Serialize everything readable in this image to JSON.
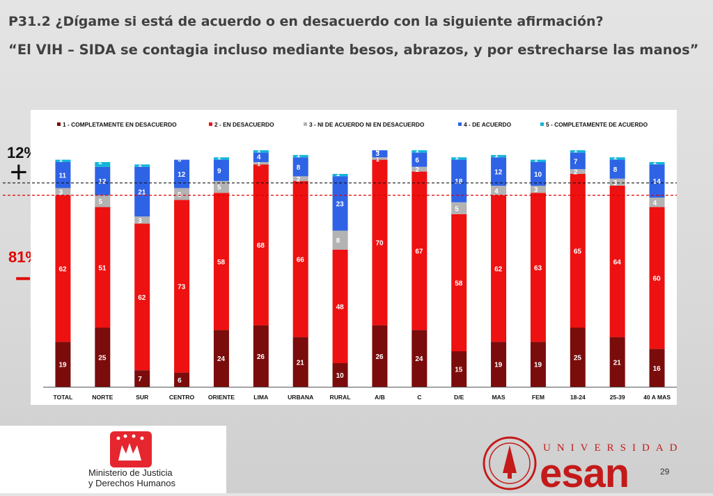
{
  "title": {
    "line1": "P31.2 ¿Dígame si está de acuerdo o en desacuerdo con la siguiente afirmación?",
    "line2": "“El VIH – SIDA se contagia incluso mediante besos, abrazos, y por estrecharse las manos”"
  },
  "side": {
    "agree_pct": "12%",
    "plus": "+",
    "disagree_pct": "81%",
    "minus": "–"
  },
  "colors": {
    "s1": "#7b0c0c",
    "s2": "#ee1111",
    "s3": "#b3b3b3",
    "s4": "#2f63e6",
    "s5": "#12b5d9"
  },
  "chart_data": {
    "type": "bar",
    "stacked": true,
    "categories": [
      "TOTAL",
      "NORTE",
      "SUR",
      "CENTRO",
      "ORIENTE",
      "LIMA",
      "URBANA",
      "RURAL",
      "A/B",
      "C",
      "D/E",
      "MAS",
      "FEM",
      "18-24",
      "25-39",
      "40 A MAS"
    ],
    "series": [
      {
        "name": "1 - COMPLETAMENTE EN DESACUERDO",
        "values": [
          19,
          25,
          7,
          6,
          24,
          26,
          21,
          10,
          26,
          24,
          15,
          19,
          19,
          25,
          21,
          16
        ]
      },
      {
        "name": "2 - EN DESACUERDO",
        "values": [
          62,
          51,
          62,
          73,
          58,
          68,
          66,
          48,
          70,
          67,
          58,
          62,
          63,
          65,
          64,
          60
        ]
      },
      {
        "name": "3 - NI DE ACUERDO NI EN DESACUERDO",
        "values": [
          3,
          5,
          3,
          5,
          5,
          1,
          2,
          8,
          1,
          2,
          5,
          4,
          3,
          2,
          3,
          4
        ]
      },
      {
        "name": "4 - DE ACUERDO",
        "values": [
          11,
          12,
          21,
          12,
          9,
          4,
          8,
          23,
          3,
          6,
          18,
          12,
          10,
          7,
          8,
          14
        ]
      },
      {
        "name": "5 - COMPLETAMENTE DE ACUERDO",
        "values": [
          1,
          2,
          1,
          0,
          1,
          1,
          1,
          1,
          0,
          1,
          1,
          1,
          1,
          1,
          1,
          1
        ]
      }
    ],
    "ylim": [
      0,
      100
    ],
    "legend": "top",
    "reference_lines": [
      "12% agree threshold (black dashed)",
      "81% disagree threshold (red dashed)"
    ]
  },
  "footer": {
    "ministry_line1": "Ministerio de Justicia",
    "ministry_line2": "y Derechos Humanos",
    "univ_label": "UNIVERSIDAD",
    "esan_label": "esan",
    "page_number": "29"
  }
}
